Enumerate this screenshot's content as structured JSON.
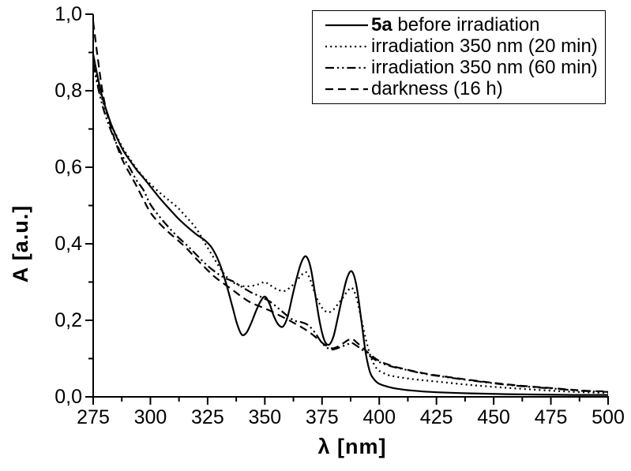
{
  "figure": {
    "background": "#ffffff",
    "axis_color": "#000000",
    "line_color": "#000000"
  },
  "chart_data": {
    "type": "line",
    "title": "",
    "xlabel": "λ [nm]",
    "ylabel": "A [a.u.]",
    "xlim": [
      275,
      500
    ],
    "ylim": [
      0.0,
      1.0
    ],
    "grid": false,
    "legend_position": "top-right",
    "x_major_ticks": [
      {
        "v": 275,
        "label": "275"
      },
      {
        "v": 300,
        "label": "300"
      },
      {
        "v": 325,
        "label": "325"
      },
      {
        "v": 350,
        "label": "350"
      },
      {
        "v": 375,
        "label": "375"
      },
      {
        "v": 400,
        "label": "400"
      },
      {
        "v": 425,
        "label": "425"
      },
      {
        "v": 450,
        "label": "450"
      },
      {
        "v": 475,
        "label": "475"
      },
      {
        "v": 500,
        "label": "500"
      }
    ],
    "x_minor_ticks": [
      287.5,
      312.5,
      337.5,
      362.5,
      387.5,
      412.5,
      437.5,
      462.5,
      487.5
    ],
    "y_major_ticks": [
      {
        "v": 0.0,
        "label": "0,0"
      },
      {
        "v": 0.2,
        "label": "0,2"
      },
      {
        "v": 0.4,
        "label": "0,4"
      },
      {
        "v": 0.6,
        "label": "0,6"
      },
      {
        "v": 0.8,
        "label": "0,8"
      },
      {
        "v": 1.0,
        "label": "1,0"
      }
    ],
    "y_minor_ticks": [
      0.1,
      0.3,
      0.5,
      0.7,
      0.9
    ],
    "series": [
      {
        "name": "5a before irradiation",
        "name_bold_prefix": "5a",
        "name_rest": " before irradiation",
        "line_style": "solid",
        "color": "#000000",
        "points": [
          [
            275,
            0.895
          ],
          [
            277,
            0.835
          ],
          [
            279,
            0.783
          ],
          [
            281,
            0.745
          ],
          [
            283,
            0.71
          ],
          [
            285,
            0.682
          ],
          [
            288,
            0.645
          ],
          [
            291,
            0.618
          ],
          [
            294,
            0.593
          ],
          [
            297,
            0.572
          ],
          [
            300,
            0.55
          ],
          [
            304,
            0.52
          ],
          [
            308,
            0.493
          ],
          [
            312,
            0.467
          ],
          [
            316,
            0.445
          ],
          [
            320,
            0.425
          ],
          [
            324,
            0.408
          ],
          [
            327,
            0.388
          ],
          [
            330,
            0.352
          ],
          [
            333,
            0.298
          ],
          [
            336,
            0.232
          ],
          [
            338,
            0.188
          ],
          [
            340,
            0.162
          ],
          [
            342,
            0.168
          ],
          [
            344,
            0.192
          ],
          [
            346,
            0.222
          ],
          [
            348,
            0.248
          ],
          [
            350,
            0.262
          ],
          [
            352,
            0.244
          ],
          [
            354,
            0.21
          ],
          [
            356,
            0.188
          ],
          [
            358,
            0.184
          ],
          [
            360,
            0.21
          ],
          [
            362,
            0.262
          ],
          [
            364,
            0.312
          ],
          [
            366,
            0.352
          ],
          [
            368,
            0.367
          ],
          [
            370,
            0.338
          ],
          [
            372,
            0.268
          ],
          [
            374,
            0.195
          ],
          [
            376,
            0.148
          ],
          [
            378,
            0.136
          ],
          [
            380,
            0.158
          ],
          [
            382,
            0.21
          ],
          [
            384,
            0.265
          ],
          [
            386,
            0.312
          ],
          [
            388,
            0.328
          ],
          [
            390,
            0.292
          ],
          [
            392,
            0.208
          ],
          [
            394,
            0.118
          ],
          [
            396,
            0.064
          ],
          [
            398,
            0.044
          ],
          [
            400,
            0.034
          ],
          [
            404,
            0.026
          ],
          [
            408,
            0.021
          ],
          [
            415,
            0.016
          ],
          [
            425,
            0.012
          ],
          [
            440,
            0.009
          ],
          [
            455,
            0.007
          ],
          [
            470,
            0.006
          ],
          [
            485,
            0.005
          ],
          [
            500,
            0.005
          ]
        ]
      },
      {
        "name": "irradiation 350 nm (20 min)",
        "name_bold_prefix": "",
        "name_rest": "irradiation 350 nm (20 min)",
        "line_style": "dotted",
        "color": "#000000",
        "points": [
          [
            275,
            0.88
          ],
          [
            277,
            0.822
          ],
          [
            279,
            0.776
          ],
          [
            281,
            0.74
          ],
          [
            283,
            0.71
          ],
          [
            285,
            0.685
          ],
          [
            288,
            0.65
          ],
          [
            291,
            0.622
          ],
          [
            294,
            0.596
          ],
          [
            297,
            0.574
          ],
          [
            300,
            0.556
          ],
          [
            304,
            0.534
          ],
          [
            308,
            0.514
          ],
          [
            312,
            0.494
          ],
          [
            316,
            0.468
          ],
          [
            320,
            0.44
          ],
          [
            324,
            0.4
          ],
          [
            328,
            0.36
          ],
          [
            331,
            0.331
          ],
          [
            334,
            0.309
          ],
          [
            337,
            0.296
          ],
          [
            340,
            0.29
          ],
          [
            343,
            0.289
          ],
          [
            346,
            0.292
          ],
          [
            348,
            0.296
          ],
          [
            350,
            0.3
          ],
          [
            352,
            0.293
          ],
          [
            355,
            0.282
          ],
          [
            358,
            0.276
          ],
          [
            360,
            0.281
          ],
          [
            362,
            0.291
          ],
          [
            364,
            0.304
          ],
          [
            366,
            0.318
          ],
          [
            368,
            0.326
          ],
          [
            370,
            0.304
          ],
          [
            372,
            0.268
          ],
          [
            374,
            0.242
          ],
          [
            376,
            0.226
          ],
          [
            378,
            0.221
          ],
          [
            380,
            0.228
          ],
          [
            382,
            0.243
          ],
          [
            384,
            0.258
          ],
          [
            386,
            0.275
          ],
          [
            388,
            0.285
          ],
          [
            390,
            0.26
          ],
          [
            392,
            0.208
          ],
          [
            394,
            0.154
          ],
          [
            396,
            0.11
          ],
          [
            398,
            0.082
          ],
          [
            400,
            0.068
          ],
          [
            404,
            0.057
          ],
          [
            408,
            0.052
          ],
          [
            415,
            0.046
          ],
          [
            425,
            0.04
          ],
          [
            440,
            0.031
          ],
          [
            455,
            0.024
          ],
          [
            470,
            0.018
          ],
          [
            485,
            0.013
          ],
          [
            500,
            0.01
          ]
        ]
      },
      {
        "name": "irradiation 350 nm (60 min)",
        "name_bold_prefix": "",
        "name_rest": "irradiation 350 nm (60 min)",
        "line_style": "dashdotdot",
        "color": "#000000",
        "points": [
          [
            275,
            0.87
          ],
          [
            277,
            0.812
          ],
          [
            279,
            0.762
          ],
          [
            281,
            0.724
          ],
          [
            283,
            0.692
          ],
          [
            285,
            0.664
          ],
          [
            288,
            0.627
          ],
          [
            291,
            0.598
          ],
          [
            294,
            0.565
          ],
          [
            297,
            0.54
          ],
          [
            300,
            0.503
          ],
          [
            304,
            0.471
          ],
          [
            308,
            0.443
          ],
          [
            312,
            0.418
          ],
          [
            316,
            0.396
          ],
          [
            320,
            0.372
          ],
          [
            324,
            0.348
          ],
          [
            328,
            0.328
          ],
          [
            332,
            0.312
          ],
          [
            336,
            0.302
          ],
          [
            340,
            0.287
          ],
          [
            344,
            0.273
          ],
          [
            348,
            0.262
          ],
          [
            352,
            0.25
          ],
          [
            356,
            0.231
          ],
          [
            360,
            0.211
          ],
          [
            363,
            0.199
          ],
          [
            366,
            0.195
          ],
          [
            369,
            0.187
          ],
          [
            372,
            0.167
          ],
          [
            374,
            0.149
          ],
          [
            376,
            0.134
          ],
          [
            378,
            0.126
          ],
          [
            380,
            0.124
          ],
          [
            383,
            0.13
          ],
          [
            386,
            0.137
          ],
          [
            388,
            0.141
          ],
          [
            390,
            0.134
          ],
          [
            393,
            0.121
          ],
          [
            396,
            0.106
          ],
          [
            400,
            0.091
          ],
          [
            405,
            0.08
          ],
          [
            410,
            0.073
          ],
          [
            420,
            0.06
          ],
          [
            430,
            0.051
          ],
          [
            445,
            0.039
          ],
          [
            460,
            0.029
          ],
          [
            475,
            0.022
          ],
          [
            490,
            0.015
          ],
          [
            500,
            0.013
          ]
        ]
      },
      {
        "name": "darkness (16 h)",
        "name_bold_prefix": "",
        "name_rest": "darkness (16 h)",
        "line_style": "dashed",
        "color": "#000000",
        "points": [
          [
            275,
            0.98
          ],
          [
            277,
            0.885
          ],
          [
            279,
            0.8
          ],
          [
            281,
            0.742
          ],
          [
            283,
            0.7
          ],
          [
            285,
            0.662
          ],
          [
            288,
            0.616
          ],
          [
            291,
            0.583
          ],
          [
            294,
            0.55
          ],
          [
            297,
            0.515
          ],
          [
            300,
            0.482
          ],
          [
            304,
            0.453
          ],
          [
            308,
            0.43
          ],
          [
            312,
            0.409
          ],
          [
            316,
            0.387
          ],
          [
            320,
            0.361
          ],
          [
            324,
            0.337
          ],
          [
            328,
            0.314
          ],
          [
            332,
            0.296
          ],
          [
            336,
            0.279
          ],
          [
            340,
            0.261
          ],
          [
            344,
            0.246
          ],
          [
            348,
            0.236
          ],
          [
            352,
            0.226
          ],
          [
            356,
            0.214
          ],
          [
            360,
            0.202
          ],
          [
            363,
            0.192
          ],
          [
            366,
            0.182
          ],
          [
            369,
            0.171
          ],
          [
            372,
            0.157
          ],
          [
            374,
            0.147
          ],
          [
            376,
            0.137
          ],
          [
            378,
            0.13
          ],
          [
            380,
            0.127
          ],
          [
            383,
            0.135
          ],
          [
            386,
            0.147
          ],
          [
            388,
            0.152
          ],
          [
            390,
            0.143
          ],
          [
            393,
            0.127
          ],
          [
            396,
            0.111
          ],
          [
            400,
            0.094
          ],
          [
            405,
            0.082
          ],
          [
            410,
            0.074
          ],
          [
            420,
            0.061
          ],
          [
            430,
            0.052
          ],
          [
            445,
            0.04
          ],
          [
            460,
            0.03
          ],
          [
            475,
            0.023
          ],
          [
            490,
            0.016
          ],
          [
            500,
            0.014
          ]
        ]
      }
    ]
  }
}
